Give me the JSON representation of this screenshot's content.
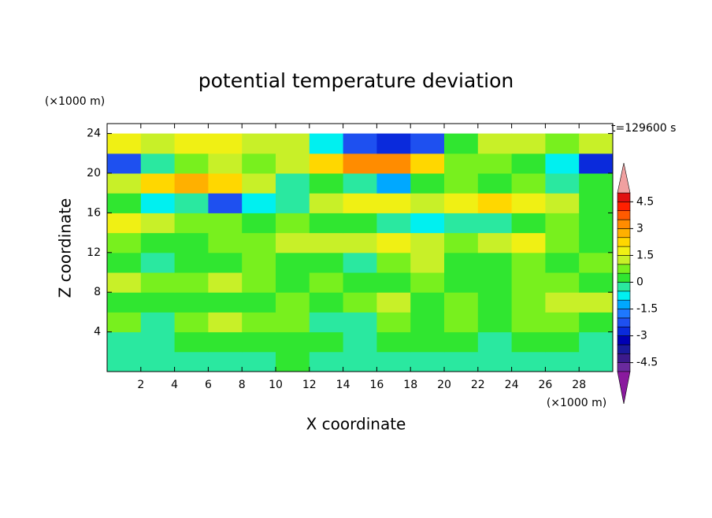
{
  "chart_data": {
    "type": "contour",
    "title": "potential temperature deviation",
    "x_label": "X coordinate",
    "y_label": "Z coordinate",
    "x_unit": "(×1000 m)",
    "y_unit": "(×1000 m)",
    "annotation": "t=129600 s",
    "xlim": [
      0,
      30
    ],
    "ylim": [
      0,
      25
    ],
    "xticks": [
      2,
      4,
      6,
      8,
      10,
      12,
      14,
      16,
      18,
      20,
      22,
      24,
      26,
      28
    ],
    "yticks": [
      4,
      8,
      12,
      16,
      20,
      24
    ],
    "x": [
      1,
      3,
      5,
      7,
      9,
      11,
      13,
      15,
      17,
      19,
      21,
      23,
      25,
      27,
      29
    ],
    "y": [
      1,
      3,
      5,
      7,
      9,
      11,
      13,
      15,
      17,
      19,
      21,
      23
    ],
    "z": [
      [
        -0.5,
        -0.5,
        -0.5,
        -0.5,
        -0.5,
        0,
        -0.5,
        -0.5,
        -0.5,
        -0.5,
        -0.5,
        -0.5,
        -0.5,
        -0.5,
        -0.5
      ],
      [
        -0.5,
        -0.5,
        0,
        0,
        0,
        0,
        0,
        -0.5,
        0,
        0,
        0,
        -0.5,
        0,
        0,
        -0.5
      ],
      [
        0.5,
        -0.5,
        0.5,
        1,
        0.5,
        0.5,
        -0.5,
        -0.5,
        0.5,
        0,
        0.5,
        0,
        0.5,
        0.5,
        0
      ],
      [
        0,
        0,
        0,
        0,
        0,
        0.5,
        0,
        0.5,
        1,
        0,
        0.5,
        0,
        0.5,
        1,
        1
      ],
      [
        1,
        0.5,
        0.5,
        1,
        0.5,
        0,
        0.5,
        0,
        0,
        0.5,
        0,
        0,
        0.5,
        0.5,
        0
      ],
      [
        0,
        -0.5,
        0,
        0,
        0.5,
        0,
        0,
        -0.5,
        0.5,
        1,
        0,
        0,
        0.5,
        0,
        0.5
      ],
      [
        0.5,
        0,
        0,
        0.5,
        0.5,
        1,
        1,
        1,
        1.5,
        1,
        0.5,
        1,
        1.5,
        0.5,
        0
      ],
      [
        1.5,
        1,
        0.5,
        0.5,
        0,
        0.5,
        0,
        0,
        -0.5,
        -1,
        -0.5,
        -0.5,
        0,
        0.5,
        0
      ],
      [
        0,
        -1,
        -0.5,
        -2.5,
        -1,
        -0.5,
        1,
        1.5,
        1.5,
        1,
        1.5,
        2,
        1.5,
        1,
        0
      ],
      [
        1,
        2,
        2.5,
        2,
        1,
        -0.5,
        0,
        -0.5,
        -1.5,
        0,
        0.5,
        0,
        0.5,
        -0.5,
        0
      ],
      [
        -2.5,
        -0.5,
        0.5,
        1,
        0.5,
        1,
        2,
        3,
        3,
        2,
        0.5,
        0.5,
        0,
        -1,
        -3
      ],
      [
        1.5,
        1,
        1.5,
        1.5,
        1,
        1,
        -1,
        -2.5,
        -3,
        -2.5,
        0,
        1,
        1,
        0.5,
        1
      ]
    ],
    "levels": [
      -5,
      -4.5,
      -4,
      -3.5,
      -3,
      -2.5,
      -2,
      -1.5,
      -1,
      -0.5,
      0,
      0.5,
      1,
      1.5,
      2,
      2.5,
      3,
      3.5,
      4,
      4.5,
      5
    ],
    "colors": [
      "#8a1a9e",
      "#6a2a9e",
      "#3c1a8c",
      "#1a1a9c",
      "#0000b4",
      "#0a2adc",
      "#1e50f0",
      "#1e78ff",
      "#00a8ff",
      "#00f0f0",
      "#2ae8a0",
      "#30e630",
      "#78f01e",
      "#c8f028",
      "#f0f014",
      "#ffd700",
      "#ffb000",
      "#ff8c00",
      "#ff5a00",
      "#ff2000",
      "#e01010",
      "#f0a0a0"
    ],
    "cbar_ticks": [
      -4.5,
      -3,
      -1.5,
      0,
      1.5,
      3,
      4.5
    ]
  }
}
